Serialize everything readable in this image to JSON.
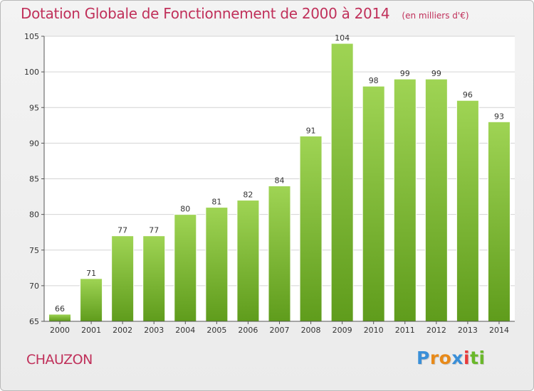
{
  "header": {
    "title": "Dotation Globale de Fonctionnement de 2000 à 2014",
    "subtitle": "(en milliers d'€)"
  },
  "commune": "CHAUZON",
  "logo": {
    "letters": [
      "P",
      "r",
      "o",
      "x",
      "i",
      "t",
      "i"
    ],
    "colors": [
      "#3a8fd8",
      "#e88a1a",
      "#e88a1a",
      "#3a8fd8",
      "#e83a3a",
      "#6ab82a",
      "#6ab82a"
    ]
  },
  "colors": {
    "bar_top": "#9fd454",
    "bar_bottom": "#5f9c1c",
    "grid": "#d4d4d4",
    "axis": "#555555",
    "title": "#c0305a"
  },
  "chart_data": {
    "type": "bar",
    "title": "Dotation Globale de Fonctionnement de 2000 à 2014",
    "subtitle": "(en milliers d'€)",
    "xlabel": "",
    "ylabel": "",
    "categories": [
      "2000",
      "2001",
      "2002",
      "2003",
      "2004",
      "2005",
      "2006",
      "2007",
      "2008",
      "2009",
      "2010",
      "2011",
      "2012",
      "2013",
      "2014"
    ],
    "values": [
      66,
      71,
      77,
      77,
      80,
      81,
      82,
      84,
      91,
      104,
      98,
      99,
      99,
      96,
      93
    ],
    "ylim": [
      65,
      105
    ],
    "yticks": [
      65,
      70,
      75,
      80,
      85,
      90,
      95,
      100,
      105
    ],
    "grid": true,
    "legend": "none"
  }
}
